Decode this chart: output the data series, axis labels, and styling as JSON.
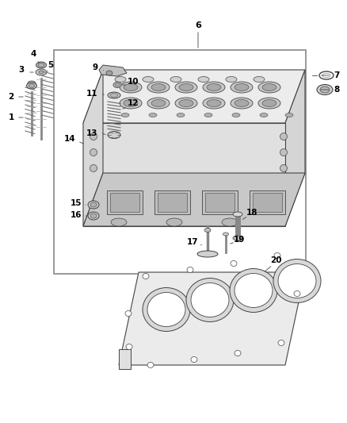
{
  "bg_color": "#ffffff",
  "line_color": "#444444",
  "text_color": "#000000",
  "fig_width": 4.38,
  "fig_height": 5.33,
  "dpi": 100
}
